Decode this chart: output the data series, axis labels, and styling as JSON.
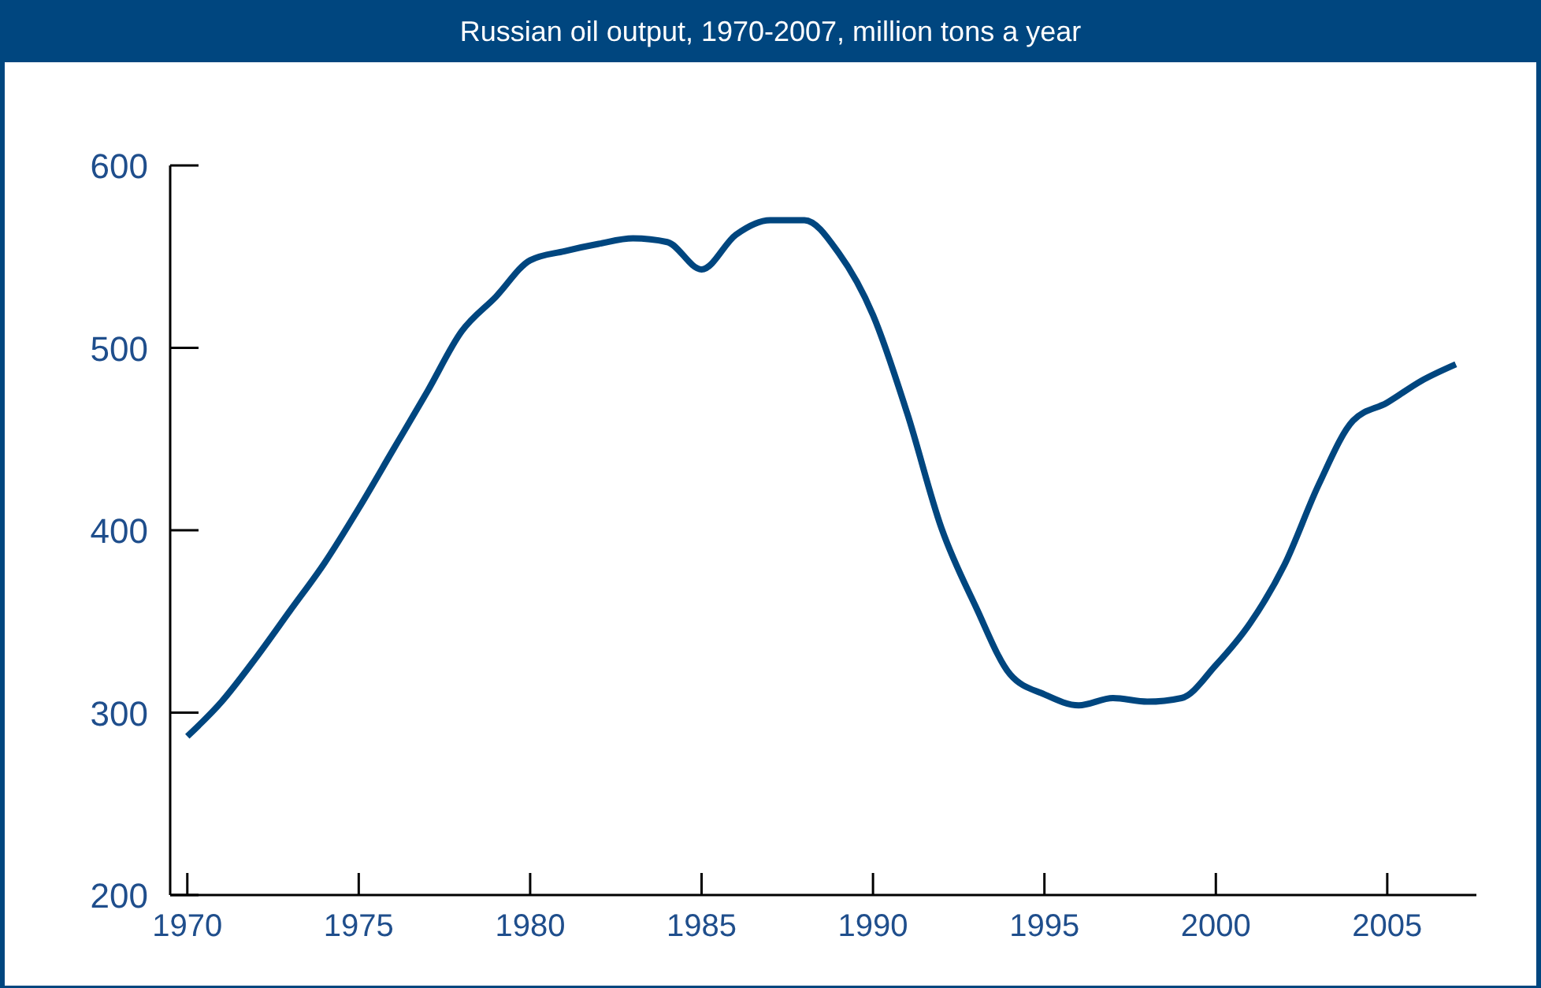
{
  "chart_data": {
    "type": "line",
    "title": "Russian oil output, 1970-2007, million tons a year",
    "x": [
      1970,
      1971,
      1972,
      1973,
      1974,
      1975,
      1976,
      1977,
      1978,
      1979,
      1980,
      1981,
      1982,
      1983,
      1984,
      1985,
      1986,
      1987,
      1988,
      1989,
      1990,
      1991,
      1992,
      1993,
      1994,
      1995,
      1996,
      1997,
      1998,
      1999,
      2000,
      2001,
      2002,
      2003,
      2004,
      2005,
      2006,
      2007
    ],
    "series": [
      {
        "color": "#00467f",
        "values": [
          287,
          306,
          330,
          356,
          382,
          412,
          444,
          476,
          509,
          528,
          548,
          553,
          557,
          560,
          558,
          543,
          562,
          570,
          570,
          552,
          518,
          464,
          401,
          358,
          321,
          310,
          304,
          308,
          306,
          308,
          326,
          349,
          381,
          425,
          460,
          470,
          482,
          491
        ]
      }
    ],
    "xlim": [
      1969.5,
      2007.6
    ],
    "xticks": [
      1970,
      1975,
      1980,
      1985,
      1990,
      1995,
      2000,
      2005
    ],
    "ylim": [
      200,
      600
    ],
    "yticks": [
      200,
      300,
      400,
      500,
      600
    ],
    "grid": false,
    "marker": "none",
    "line_style": "solid"
  }
}
